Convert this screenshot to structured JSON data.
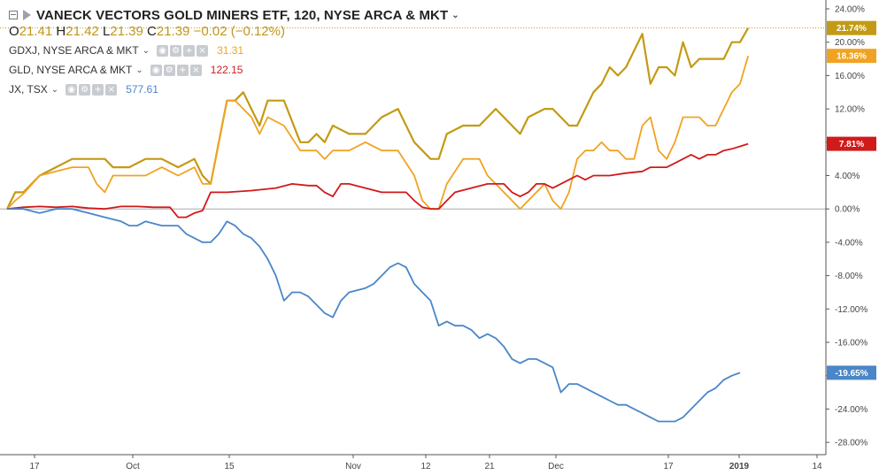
{
  "legend": {
    "title": "VANECK VECTORS GOLD MINERS ETF, 120, NYSE ARCA & MKT",
    "ohlc": {
      "o_label": "O",
      "o": "21.41",
      "h_label": "H",
      "h": "21.42",
      "l_label": "L",
      "l": "21.39",
      "c_label": "C",
      "c": "21.39",
      "change": "−0.02 (−0.12%)"
    },
    "series": [
      {
        "label": "GDXJ, NYSE ARCA & MKT",
        "value": "31.31",
        "color": "#f0a322"
      },
      {
        "label": "GLD, NYSE ARCA & MKT",
        "value": "122.15",
        "color": "#d11a1a"
      },
      {
        "label": "JX, TSX",
        "value": "577.61",
        "color": "#4a86c8"
      }
    ]
  },
  "colors": {
    "main": "#c39a14",
    "gdxj": "#f0a322",
    "gld": "#d11a1a",
    "jx": "#4a86c8"
  },
  "chart_data": {
    "type": "line",
    "x": [
      "17",
      "Oct",
      "15",
      "Nov",
      "12",
      "21",
      "Dec",
      "17",
      "2019",
      "14"
    ],
    "y_ticks": [
      "24.00%",
      "20.00%",
      "16.00%",
      "12.00%",
      "8.00%",
      "4.00%",
      "0.00%",
      "-4.00%",
      "-8.00%",
      "-12.00%",
      "-16.00%",
      "-20.00%",
      "-24.00%",
      "-28.00%"
    ],
    "ylim": [
      -28,
      24
    ],
    "price_tags": [
      {
        "text": "21.74%",
        "color": "#c39a14"
      },
      {
        "text": "18.36%",
        "color": "#f0a322"
      },
      {
        "text": "7.81%",
        "color": "#d11a1a"
      },
      {
        "text": "-19.65%",
        "color": "#4a86c8"
      }
    ],
    "series": [
      {
        "name": "VANECK VECTORS GOLD MINERS ETF",
        "color": "#c39a14",
        "points": [
          [
            0,
            0
          ],
          [
            1,
            2
          ],
          [
            2,
            2
          ],
          [
            4,
            4
          ],
          [
            6,
            5
          ],
          [
            8,
            6
          ],
          [
            10,
            6
          ],
          [
            12,
            6
          ],
          [
            13,
            5
          ],
          [
            15,
            5
          ],
          [
            17,
            6
          ],
          [
            19,
            6
          ],
          [
            21,
            5
          ],
          [
            23,
            6
          ],
          [
            24,
            4
          ],
          [
            25,
            3
          ],
          [
            26,
            8
          ],
          [
            27,
            13
          ],
          [
            28,
            13
          ],
          [
            29,
            14
          ],
          [
            30,
            12
          ],
          [
            31,
            10
          ],
          [
            32,
            13
          ],
          [
            34,
            13
          ],
          [
            36,
            8
          ],
          [
            37,
            8
          ],
          [
            38,
            9
          ],
          [
            39,
            8
          ],
          [
            40,
            10
          ],
          [
            42,
            9
          ],
          [
            44,
            9
          ],
          [
            46,
            11
          ],
          [
            48,
            12
          ],
          [
            50,
            8
          ],
          [
            52,
            6
          ],
          [
            53,
            6
          ],
          [
            54,
            9
          ],
          [
            56,
            10
          ],
          [
            58,
            10
          ],
          [
            60,
            12
          ],
          [
            62,
            10
          ],
          [
            63,
            9
          ],
          [
            64,
            11
          ],
          [
            66,
            12
          ],
          [
            67,
            12
          ],
          [
            68,
            11
          ],
          [
            69,
            10
          ],
          [
            70,
            10
          ],
          [
            71,
            12
          ],
          [
            72,
            14
          ],
          [
            73,
            15
          ],
          [
            74,
            17
          ],
          [
            75,
            16
          ],
          [
            76,
            17
          ],
          [
            77,
            19
          ],
          [
            78,
            21
          ],
          [
            79,
            15
          ],
          [
            80,
            17
          ],
          [
            81,
            17
          ],
          [
            82,
            16
          ],
          [
            83,
            20
          ],
          [
            84,
            17
          ],
          [
            85,
            18
          ],
          [
            86,
            18
          ],
          [
            87,
            18
          ],
          [
            88,
            18
          ],
          [
            89,
            20
          ],
          [
            90,
            20
          ],
          [
            91,
            21.7
          ]
        ]
      },
      {
        "name": "GDXJ",
        "color": "#f0a322",
        "points": [
          [
            0,
            0
          ],
          [
            1,
            1
          ],
          [
            2,
            1.8
          ],
          [
            4,
            4
          ],
          [
            6,
            4.5
          ],
          [
            8,
            5
          ],
          [
            10,
            5
          ],
          [
            11,
            3
          ],
          [
            12,
            2
          ],
          [
            13,
            4
          ],
          [
            15,
            4
          ],
          [
            17,
            4
          ],
          [
            19,
            5
          ],
          [
            21,
            4
          ],
          [
            23,
            5
          ],
          [
            24,
            3
          ],
          [
            25,
            3
          ],
          [
            26,
            8
          ],
          [
            27,
            13
          ],
          [
            28,
            13
          ],
          [
            29,
            12
          ],
          [
            30,
            11
          ],
          [
            31,
            9
          ],
          [
            32,
            11
          ],
          [
            34,
            10
          ],
          [
            36,
            7
          ],
          [
            37,
            7
          ],
          [
            38,
            7
          ],
          [
            39,
            6
          ],
          [
            40,
            7
          ],
          [
            42,
            7
          ],
          [
            44,
            8
          ],
          [
            46,
            7
          ],
          [
            48,
            7
          ],
          [
            50,
            4
          ],
          [
            51,
            1
          ],
          [
            52,
            0
          ],
          [
            53,
            0
          ],
          [
            54,
            3
          ],
          [
            56,
            6
          ],
          [
            58,
            6
          ],
          [
            59,
            4
          ],
          [
            60,
            3
          ],
          [
            61,
            2
          ],
          [
            62,
            1
          ],
          [
            63,
            0
          ],
          [
            64,
            1
          ],
          [
            65,
            2
          ],
          [
            66,
            3
          ],
          [
            67,
            1
          ],
          [
            68,
            0
          ],
          [
            69,
            2
          ],
          [
            70,
            6
          ],
          [
            71,
            7
          ],
          [
            72,
            7
          ],
          [
            73,
            8
          ],
          [
            74,
            7
          ],
          [
            75,
            7
          ],
          [
            76,
            6
          ],
          [
            77,
            6
          ],
          [
            78,
            10
          ],
          [
            79,
            11
          ],
          [
            80,
            7
          ],
          [
            81,
            6
          ],
          [
            82,
            8
          ],
          [
            83,
            11
          ],
          [
            84,
            11
          ],
          [
            85,
            11
          ],
          [
            86,
            10
          ],
          [
            87,
            10
          ],
          [
            88,
            12
          ],
          [
            89,
            14
          ],
          [
            90,
            15
          ],
          [
            91,
            18.36
          ]
        ]
      },
      {
        "name": "GLD",
        "color": "#d11a1a",
        "points": [
          [
            0,
            0
          ],
          [
            2,
            0.2
          ],
          [
            4,
            0.3
          ],
          [
            6,
            0.2
          ],
          [
            8,
            0.3
          ],
          [
            10,
            0.1
          ],
          [
            12,
            0
          ],
          [
            14,
            0.3
          ],
          [
            16,
            0.3
          ],
          [
            18,
            0.2
          ],
          [
            20,
            0.2
          ],
          [
            21,
            -1
          ],
          [
            22,
            -1
          ],
          [
            23,
            -0.5
          ],
          [
            24,
            -0.2
          ],
          [
            25,
            2
          ],
          [
            27,
            2
          ],
          [
            30,
            2.2
          ],
          [
            33,
            2.5
          ],
          [
            35,
            3
          ],
          [
            37,
            2.8
          ],
          [
            38,
            2.8
          ],
          [
            39,
            2
          ],
          [
            40,
            1.5
          ],
          [
            41,
            3
          ],
          [
            42,
            3
          ],
          [
            44,
            2.5
          ],
          [
            46,
            2
          ],
          [
            48,
            2
          ],
          [
            49,
            2
          ],
          [
            50,
            1
          ],
          [
            51,
            0.2
          ],
          [
            52,
            0
          ],
          [
            53,
            0
          ],
          [
            54,
            1
          ],
          [
            55,
            2
          ],
          [
            57,
            2.5
          ],
          [
            59,
            3
          ],
          [
            61,
            3
          ],
          [
            62,
            2
          ],
          [
            63,
            1.5
          ],
          [
            64,
            2
          ],
          [
            65,
            3
          ],
          [
            66,
            3
          ],
          [
            67,
            2.5
          ],
          [
            68,
            3
          ],
          [
            69,
            3.5
          ],
          [
            70,
            4
          ],
          [
            71,
            3.5
          ],
          [
            72,
            4
          ],
          [
            74,
            4
          ],
          [
            76,
            4.3
          ],
          [
            78,
            4.5
          ],
          [
            79,
            5
          ],
          [
            80,
            5
          ],
          [
            81,
            5
          ],
          [
            82,
            5.5
          ],
          [
            83,
            6
          ],
          [
            84,
            6.5
          ],
          [
            85,
            6
          ],
          [
            86,
            6.5
          ],
          [
            87,
            6.5
          ],
          [
            88,
            7
          ],
          [
            89,
            7.2
          ],
          [
            90,
            7.5
          ],
          [
            91,
            7.81
          ]
        ]
      },
      {
        "name": "JX",
        "color": "#4a86c8",
        "points": [
          [
            0,
            0
          ],
          [
            2,
            0
          ],
          [
            4,
            -0.5
          ],
          [
            6,
            0
          ],
          [
            8,
            0
          ],
          [
            10,
            -0.5
          ],
          [
            12,
            -1
          ],
          [
            14,
            -1.5
          ],
          [
            15,
            -2
          ],
          [
            16,
            -2
          ],
          [
            17,
            -1.5
          ],
          [
            19,
            -2
          ],
          [
            21,
            -2
          ],
          [
            22,
            -3
          ],
          [
            23,
            -3.5
          ],
          [
            24,
            -4
          ],
          [
            25,
            -4
          ],
          [
            26,
            -3
          ],
          [
            27,
            -1.5
          ],
          [
            28,
            -2
          ],
          [
            29,
            -3
          ],
          [
            30,
            -3.5
          ],
          [
            31,
            -4.5
          ],
          [
            32,
            -6
          ],
          [
            33,
            -8
          ],
          [
            34,
            -11
          ],
          [
            35,
            -10
          ],
          [
            36,
            -10
          ],
          [
            37,
            -10.5
          ],
          [
            38,
            -11.5
          ],
          [
            39,
            -12.5
          ],
          [
            40,
            -13
          ],
          [
            41,
            -11
          ],
          [
            42,
            -10
          ],
          [
            44,
            -9.5
          ],
          [
            45,
            -9
          ],
          [
            46,
            -8
          ],
          [
            47,
            -7
          ],
          [
            48,
            -6.5
          ],
          [
            49,
            -7
          ],
          [
            50,
            -9
          ],
          [
            51,
            -10
          ],
          [
            52,
            -11
          ],
          [
            53,
            -14
          ],
          [
            54,
            -13.5
          ],
          [
            55,
            -14
          ],
          [
            56,
            -14
          ],
          [
            57,
            -14.5
          ],
          [
            58,
            -15.5
          ],
          [
            59,
            -15
          ],
          [
            60,
            -15.5
          ],
          [
            61,
            -16.5
          ],
          [
            62,
            -18
          ],
          [
            63,
            -18.5
          ],
          [
            64,
            -18
          ],
          [
            65,
            -18
          ],
          [
            66,
            -18.5
          ],
          [
            67,
            -19
          ],
          [
            68,
            -22
          ],
          [
            69,
            -21
          ],
          [
            70,
            -21
          ],
          [
            71,
            -21.5
          ],
          [
            72,
            -22
          ],
          [
            73,
            -22.5
          ],
          [
            74,
            -23
          ],
          [
            75,
            -23.5
          ],
          [
            76,
            -23.5
          ],
          [
            77,
            -24
          ],
          [
            78,
            -24.5
          ],
          [
            79,
            -25
          ],
          [
            80,
            -25.5
          ],
          [
            81,
            -25.5
          ],
          [
            82,
            -25.5
          ],
          [
            83,
            -25
          ],
          [
            84,
            -24
          ],
          [
            85,
            -23
          ],
          [
            86,
            -22
          ],
          [
            87,
            -21.5
          ],
          [
            88,
            -20.5
          ],
          [
            89,
            -20
          ],
          [
            90,
            -19.65
          ]
        ]
      }
    ]
  }
}
